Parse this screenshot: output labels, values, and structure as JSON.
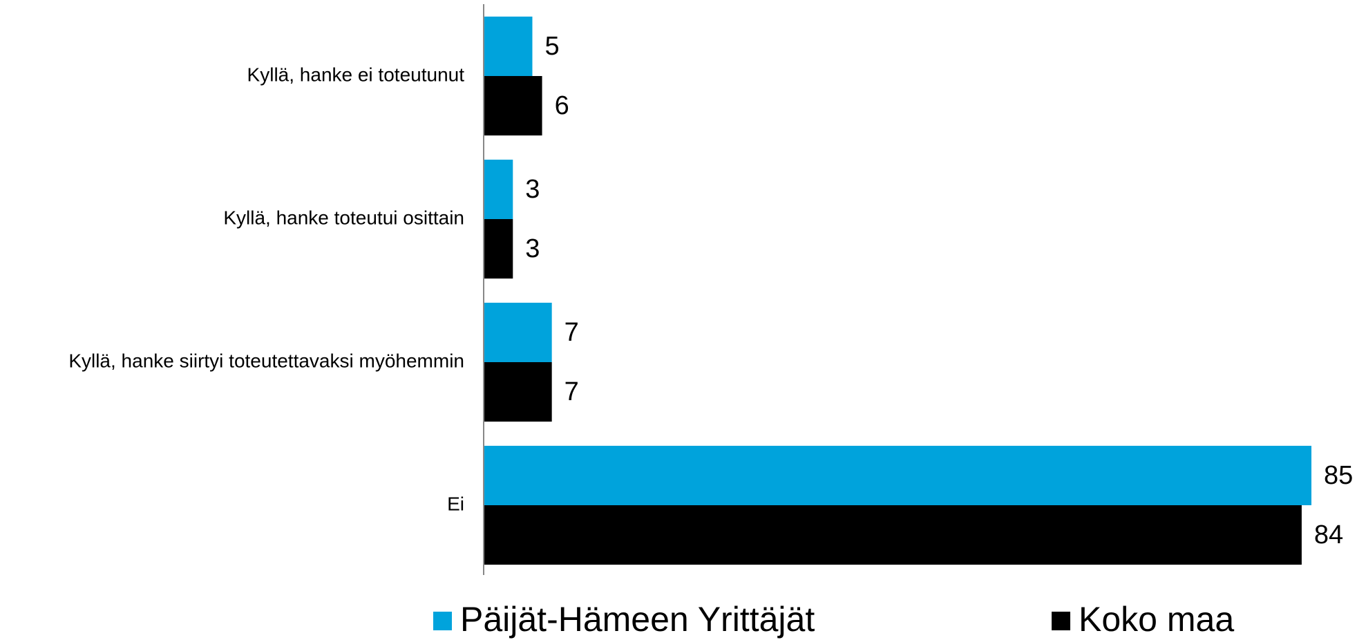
{
  "chart_data": {
    "type": "hbar",
    "categories": [
      "Kyllä, hanke ei toteutunut",
      "Kyllä, hanke toteutui osittain",
      "Kyllä, hanke siirtyi toteutettavaksi myöhemmin",
      "Ei"
    ],
    "series": [
      {
        "name": "Päijät-Hämeen Yrittäjät",
        "color": "#00a3dc",
        "values": [
          5,
          3,
          7,
          85
        ]
      },
      {
        "name": "Koko maa",
        "color": "#000000",
        "values": [
          6,
          3,
          7,
          84
        ]
      }
    ]
  }
}
